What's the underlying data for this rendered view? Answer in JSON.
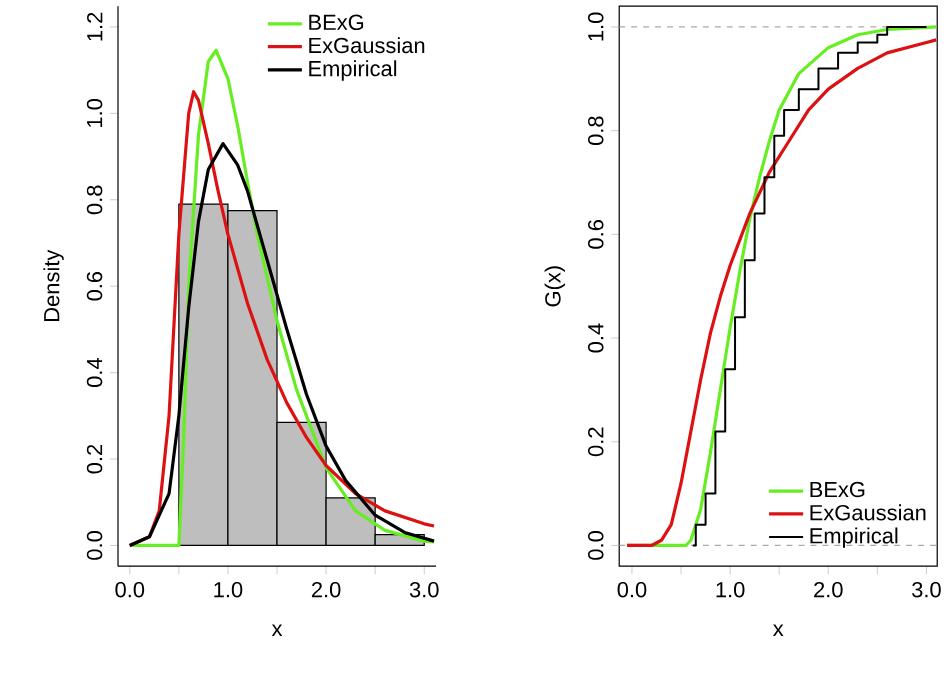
{
  "chart_data": [
    {
      "type": "histogram",
      "xlabel": "x",
      "ylabel": "Density",
      "bins": [
        0.5,
        1.0,
        1.5,
        2.0,
        2.5,
        3.0
      ],
      "values": [
        0.79,
        0.775,
        0.285,
        0.11,
        0.025
      ],
      "color": "#bebebe",
      "xlim": [
        -0.12,
        3.12
      ],
      "ylim": [
        -0.048,
        1.248
      ],
      "xticks": [
        {
          "value": 0,
          "label": "0.0"
        },
        {
          "value": 0.5,
          "label": null
        },
        {
          "value": 1,
          "label": "1.0"
        },
        {
          "value": 1.5,
          "label": null
        },
        {
          "value": 2,
          "label": "2.0"
        },
        {
          "value": 2.5,
          "label": null
        },
        {
          "value": 3,
          "label": "3.0"
        }
      ],
      "yticks": [
        {
          "value": 0,
          "label": "0.0"
        },
        {
          "value": 0.2,
          "label": "0.2"
        },
        {
          "value": 0.4,
          "label": "0.4"
        },
        {
          "value": 0.6,
          "label": "0.6"
        },
        {
          "value": 0.8,
          "label": "0.8"
        },
        {
          "value": 1,
          "label": "1.0"
        },
        {
          "value": 1.2,
          "label": "1.2"
        }
      ],
      "legend": "top right",
      "series": [
        {
          "type": "line",
          "name": "BExG",
          "color": "#66ee22",
          "x": [
            0,
            0.5,
            0.55,
            0.6,
            0.7,
            0.8,
            0.88,
            1.0,
            1.1,
            1.2,
            1.3,
            1.5,
            1.7,
            2.0,
            2.3,
            2.6,
            3.0,
            3.1
          ],
          "values": [
            0,
            0,
            0.25,
            0.6,
            0.95,
            1.12,
            1.146,
            1.08,
            0.97,
            0.84,
            0.72,
            0.52,
            0.36,
            0.18,
            0.08,
            0.035,
            0.01,
            0.008
          ]
        },
        {
          "type": "line",
          "name": "ExGaussian",
          "color": "#dd1111",
          "x": [
            0,
            0.2,
            0.3,
            0.4,
            0.5,
            0.6,
            0.65,
            0.7,
            0.8,
            0.9,
            1.0,
            1.2,
            1.4,
            1.6,
            1.8,
            2.0,
            2.3,
            2.6,
            3.0,
            3.1
          ],
          "values": [
            0,
            0.02,
            0.08,
            0.3,
            0.72,
            1.0,
            1.05,
            1.03,
            0.93,
            0.82,
            0.72,
            0.56,
            0.43,
            0.33,
            0.25,
            0.185,
            0.12,
            0.08,
            0.05,
            0.045
          ]
        },
        {
          "type": "line",
          "name": "Empirical",
          "color": "#000000",
          "x": [
            0,
            0.2,
            0.4,
            0.5,
            0.6,
            0.7,
            0.8,
            0.95,
            1.1,
            1.2,
            1.4,
            1.6,
            1.8,
            2.0,
            2.2,
            2.5,
            2.8,
            3.1
          ],
          "values": [
            0,
            0.02,
            0.12,
            0.3,
            0.55,
            0.75,
            0.87,
            0.93,
            0.88,
            0.82,
            0.66,
            0.5,
            0.35,
            0.23,
            0.15,
            0.07,
            0.03,
            0.01
          ]
        }
      ]
    },
    {
      "type": "line",
      "xlabel": "x",
      "ylabel": "G(x)",
      "xlim": [
        -0.13,
        3.11
      ],
      "ylim": [
        -0.04,
        1.04
      ],
      "xticks": [
        {
          "value": 0,
          "label": "0.0"
        },
        {
          "value": 0.5,
          "label": null
        },
        {
          "value": 1,
          "label": "1.0"
        },
        {
          "value": 1.5,
          "label": null
        },
        {
          "value": 2,
          "label": "2.0"
        },
        {
          "value": 2.5,
          "label": null
        },
        {
          "value": 3,
          "label": "3.0"
        }
      ],
      "yticks": [
        {
          "value": 0,
          "label": "0.0"
        },
        {
          "value": 0.2,
          "label": "0.2"
        },
        {
          "value": 0.4,
          "label": "0.4"
        },
        {
          "value": 0.6,
          "label": "0.6"
        },
        {
          "value": 0.8,
          "label": "0.8"
        },
        {
          "value": 1,
          "label": "1.0"
        }
      ],
      "legend": "bottom right",
      "ref_lines": [
        {
          "axis": "y",
          "value": 0,
          "color": "#aaaaaa",
          "line_style": "dashed"
        },
        {
          "axis": "y",
          "value": 1,
          "color": "#aaaaaa",
          "line_style": "dashed"
        }
      ],
      "series": [
        {
          "type": "line",
          "name": "BExG",
          "color": "#66ee22",
          "x": [
            -0.05,
            0.55,
            0.6,
            0.7,
            0.8,
            0.9,
            1.0,
            1.1,
            1.2,
            1.3,
            1.4,
            1.5,
            1.7,
            2.0,
            2.3,
            2.6,
            3.1
          ],
          "values": [
            0,
            0,
            0.01,
            0.07,
            0.18,
            0.3,
            0.42,
            0.53,
            0.63,
            0.71,
            0.78,
            0.84,
            0.91,
            0.96,
            0.985,
            0.995,
            1.0
          ]
        },
        {
          "type": "line",
          "name": "ExGaussian",
          "color": "#dd1111",
          "x": [
            -0.05,
            0.2,
            0.3,
            0.4,
            0.5,
            0.6,
            0.7,
            0.8,
            0.9,
            1.0,
            1.2,
            1.4,
            1.6,
            1.8,
            2.0,
            2.3,
            2.6,
            3.0,
            3.1
          ],
          "values": [
            0,
            0,
            0.01,
            0.04,
            0.12,
            0.22,
            0.32,
            0.41,
            0.48,
            0.54,
            0.64,
            0.72,
            0.78,
            0.84,
            0.88,
            0.92,
            0.95,
            0.97,
            0.975
          ]
        },
        {
          "type": "step",
          "name": "Empirical",
          "color": "#000000",
          "x": [
            0.62,
            0.65,
            0.75,
            0.85,
            0.95,
            1.05,
            1.15,
            1.25,
            1.35,
            1.45,
            1.55,
            1.7,
            1.9,
            2.1,
            2.3,
            2.5,
            2.6,
            3.0
          ],
          "values": [
            0,
            0.04,
            0.1,
            0.22,
            0.34,
            0.44,
            0.55,
            0.64,
            0.71,
            0.79,
            0.84,
            0.88,
            0.92,
            0.95,
            0.97,
            0.985,
            1.0,
            1.0
          ]
        }
      ]
    }
  ]
}
